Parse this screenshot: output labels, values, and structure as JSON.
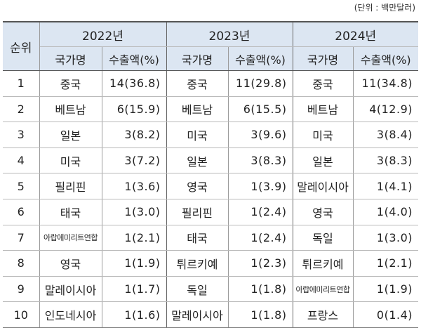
{
  "unit_note": "(단위 : 백만달러)",
  "header": {
    "rank_label": "순위",
    "years": [
      "2022년",
      "2023년",
      "2024년"
    ],
    "country_label": "국가명",
    "amount_label": "수출액(%)"
  },
  "rows": [
    {
      "rank": "1",
      "c2022": "중국",
      "v2022": "14(36.8)",
      "c2023": "중국",
      "v2023": "11(29.8)",
      "c2024": "중국",
      "v2024": "11(34.8)"
    },
    {
      "rank": "2",
      "c2022": "베트남",
      "v2022": "6(15.9)",
      "c2023": "베트남",
      "v2023": "6(15.5)",
      "c2024": "베트남",
      "v2024": "4(12.9)"
    },
    {
      "rank": "3",
      "c2022": "일본",
      "v2022": "3(8.2)",
      "c2023": "미국",
      "v2023": "3(9.6)",
      "c2024": "미국",
      "v2024": "3(8.4)"
    },
    {
      "rank": "4",
      "c2022": "미국",
      "v2022": "3(7.2)",
      "c2023": "일본",
      "v2023": "3(8.3)",
      "c2024": "일본",
      "v2024": "3(8.3)"
    },
    {
      "rank": "5",
      "c2022": "필리핀",
      "v2022": "1(3.6)",
      "c2023": "영국",
      "v2023": "1(3.9)",
      "c2024": "말레이시아",
      "v2024": "1(4.1)"
    },
    {
      "rank": "6",
      "c2022": "태국",
      "v2022": "1(3.0)",
      "c2023": "필리핀",
      "v2023": "1(2.4)",
      "c2024": "영국",
      "v2024": "1(4.0)"
    },
    {
      "rank": "7",
      "c2022": "아랍에미리트연합",
      "v2022": "1(2.1)",
      "c2023": "태국",
      "v2023": "1(2.4)",
      "c2024": "독일",
      "v2024": "1(3.0)"
    },
    {
      "rank": "8",
      "c2022": "영국",
      "v2022": "1(1.9)",
      "c2023": "튀르키예",
      "v2023": "1(2.3)",
      "c2024": "튀르키예",
      "v2024": "1(2.1)"
    },
    {
      "rank": "9",
      "c2022": "말레이시아",
      "v2022": "1(1.7)",
      "c2023": "독일",
      "v2023": "1(1.8)",
      "c2024": "아랍에미리트연합",
      "v2024": "1(1.9)"
    },
    {
      "rank": "10",
      "c2022": "인도네시아",
      "v2022": "1(1.6)",
      "c2023": "말레이시아",
      "v2023": "1(1.8)",
      "c2024": "프랑스",
      "v2024": "0(1.4)"
    }
  ]
}
